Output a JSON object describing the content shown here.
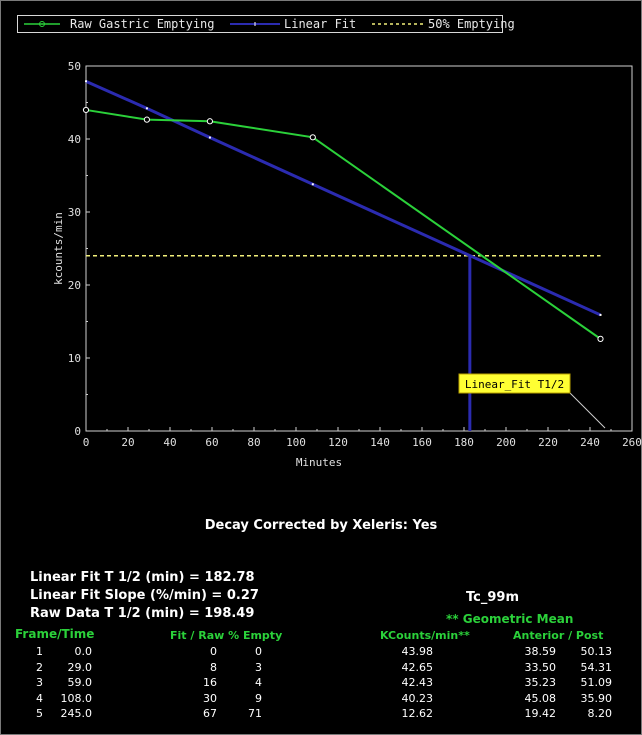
{
  "chart_data": {
    "type": "line",
    "xlabel": "Minutes",
    "ylabel": "kcounts/min",
    "xlim": [
      0,
      260
    ],
    "ylim": [
      0,
      50
    ],
    "x_ticks": [
      "0",
      "20",
      "40",
      "60",
      "80",
      "100",
      "120",
      "140",
      "160",
      "180",
      "200",
      "220",
      "240",
      "260"
    ],
    "y_ticks": [
      "0",
      "10",
      "20",
      "30",
      "40",
      "50"
    ],
    "series": [
      {
        "name": "Raw Gastric Emptying",
        "color": "#2bd13a",
        "x": [
          0.0,
          29.0,
          59.0,
          108.0,
          245.0
        ],
        "y": [
          43.98,
          42.65,
          42.43,
          40.23,
          12.62
        ]
      },
      {
        "name": "Linear Fit",
        "color": "#2b2bb0",
        "x": [
          0.0,
          29.0,
          59.0,
          108.0,
          245.0
        ],
        "y": [
          47.9,
          44.2,
          40.2,
          33.8,
          15.9
        ]
      },
      {
        "name": "50% Emptying",
        "color": "#f2ef7a",
        "style": "dashed",
        "x": [
          0,
          245
        ],
        "y": [
          24.0,
          24.0
        ]
      }
    ],
    "annotation": {
      "text": "Linear_Fit T1/2",
      "x": 182.78
    }
  },
  "legend": [
    {
      "label": "Raw Gastric Emptying"
    },
    {
      "label": "Linear Fit"
    },
    {
      "label": "50% Emptying"
    }
  ],
  "decay": "Decay Corrected by Xeleris: Yes",
  "stats": {
    "fit_t_half": "Linear Fit T 1/2 (min) = 182.78",
    "fit_slope": "Linear Fit Slope (%/min) = 0.27",
    "raw_t_half": "Raw Data T 1/2 (min) = 198.49"
  },
  "isotope": "Tc_99m",
  "geometric_mean": "** Geometric Mean",
  "headers": {
    "frame_time": "Frame/Time",
    "fit_raw": "Fit / Raw % Empty",
    "kcounts": "KCounts/min**",
    "ant_post": "Anterior / Post"
  },
  "rows": [
    {
      "frame": "1",
      "time": "0.0",
      "fit": "0",
      "raw": "0",
      "kcounts": "43.98",
      "anterior": "38.59",
      "post": "50.13"
    },
    {
      "frame": "2",
      "time": "29.0",
      "fit": "8",
      "raw": "3",
      "kcounts": "42.65",
      "anterior": "33.50",
      "post": "54.31"
    },
    {
      "frame": "3",
      "time": "59.0",
      "fit": "16",
      "raw": "4",
      "kcounts": "42.43",
      "anterior": "35.23",
      "post": "51.09"
    },
    {
      "frame": "4",
      "time": "108.0",
      "fit": "30",
      "raw": "9",
      "kcounts": "40.23",
      "anterior": "45.08",
      "post": "35.90"
    },
    {
      "frame": "5",
      "time": "245.0",
      "fit": "67",
      "raw": "71",
      "kcounts": "12.62",
      "anterior": "19.42",
      "post": "8.20"
    }
  ]
}
